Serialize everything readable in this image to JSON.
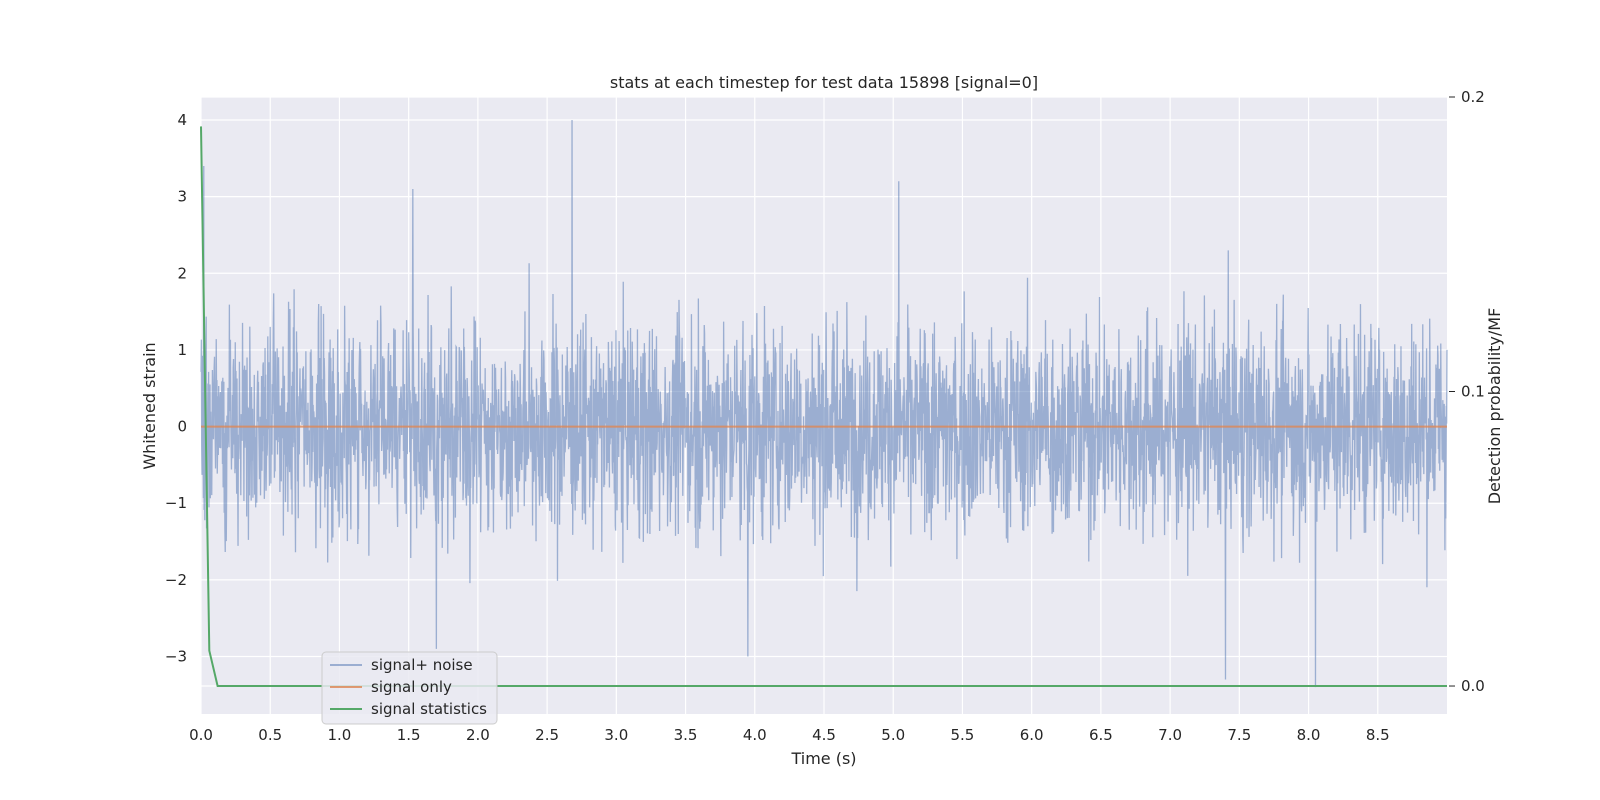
{
  "chart_data": {
    "type": "line",
    "title": "stats at each timestep for test data 15898 [signal=0]",
    "xlabel": "Time (s)",
    "ylabel": "Whitened strain",
    "ylabel_right": "Detection probability/MF",
    "xlim": [
      0.0,
      9.0
    ],
    "ylim": [
      -3.75,
      4.3
    ],
    "ylim_right": [
      -0.0095,
      0.2
    ],
    "x_ticks": [
      "0.0",
      "0.5",
      "1.0",
      "1.5",
      "2.0",
      "2.5",
      "3.0",
      "3.5",
      "4.0",
      "4.5",
      "5.0",
      "5.5",
      "6.0",
      "6.5",
      "7.0",
      "7.5",
      "8.0",
      "8.5"
    ],
    "y_ticks": [
      "4",
      "3",
      "2",
      "1",
      "0",
      "−1",
      "−2",
      "−3"
    ],
    "y_ticks_right": [
      "0.2",
      "0.1",
      "0.0"
    ],
    "grid": true,
    "legend_position": "lower-left",
    "series": [
      {
        "name": "signal+ noise",
        "axis": "left",
        "color": "#4c72b0",
        "description_points": {
          "x": [
            0.02,
            0.5,
            1.53,
            1.7,
            2.68,
            3.95,
            5.04,
            7.4,
            8.05,
            9.0
          ],
          "y": [
            3.4,
            1.3,
            3.1,
            -2.9,
            4.0,
            -3.0,
            3.2,
            -3.3,
            -3.4,
            1.0
          ]
        }
      },
      {
        "name": "signal only",
        "axis": "left",
        "color": "#dd8452",
        "x": [
          0.0,
          9.0
        ],
        "y": [
          0.0,
          0.0
        ]
      },
      {
        "name": "signal statistics",
        "axis": "right",
        "color": "#55a868",
        "x": [
          0.0,
          0.03,
          0.06,
          0.12,
          9.0
        ],
        "y": [
          0.19,
          0.1,
          0.012,
          0.0,
          0.0
        ]
      }
    ]
  },
  "colors": {
    "plot_bg": "#eaeaf2",
    "grid": "#ffffff"
  }
}
